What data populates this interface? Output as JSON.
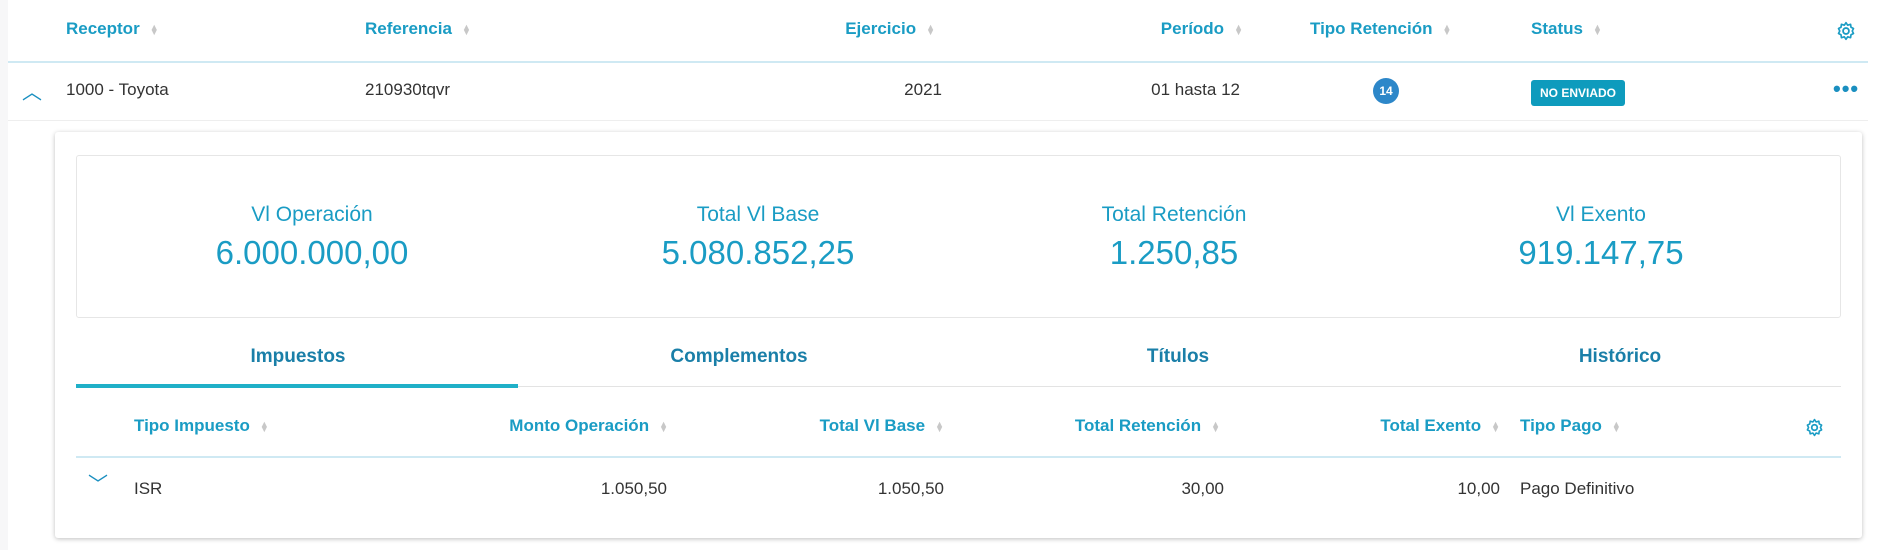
{
  "table": {
    "headers": {
      "receptor": "Receptor",
      "referencia": "Referencia",
      "ejercicio": "Ejercicio",
      "periodo": "Período",
      "tipo_retencion": "Tipo Retención",
      "status": "Status"
    },
    "row": {
      "receptor": "1000 - Toyota",
      "referencia": "210930tqvr",
      "ejercicio": "2021",
      "periodo": "01 hasta 12",
      "tipo_retencion": "14",
      "status": "NO ENVIADO"
    }
  },
  "summary": [
    {
      "label": "Vl Operación",
      "value": "6.000.000,00"
    },
    {
      "label": "Total Vl Base",
      "value": "5.080.852,25"
    },
    {
      "label": "Total Retención",
      "value": "1.250,85"
    },
    {
      "label": "Vl Exento",
      "value": "919.147,75"
    }
  ],
  "tabs": [
    "Impuestos",
    "Complementos",
    "Títulos",
    "Histórico"
  ],
  "subtable": {
    "headers": {
      "tipo_impuesto": "Tipo Impuesto",
      "monto_operacion": "Monto Operación",
      "total_base": "Total Vl Base",
      "total_retencion": "Total Retención",
      "total_exento": "Total Exento",
      "tipo_pago": "Tipo Pago"
    },
    "row": {
      "tipo_impuesto": "ISR",
      "monto_operacion": "1.050,50",
      "total_base": "1.050,50",
      "total_retencion": "30,00",
      "total_exento": "10,00",
      "tipo_pago": "Pago Definitivo"
    }
  },
  "colors": {
    "accent": "#1a9cc4",
    "badge": "#2d87c9",
    "status": "#0e9bbd"
  }
}
